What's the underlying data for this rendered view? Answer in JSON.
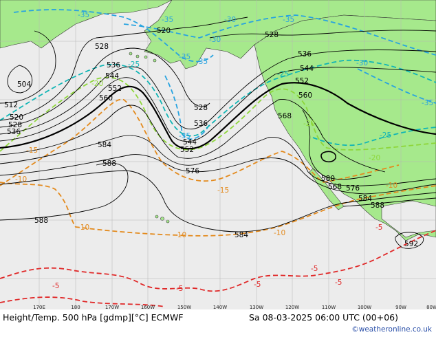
{
  "footer": {
    "title": "Height/Temp. 500 hPa [gdmp][°C] ECMWF",
    "datetime": "Sa 08-03-2025 06:00 UTC (00+06)",
    "credit": "©weatheronline.co.uk"
  },
  "longitude_ticks": [
    "170E",
    "180",
    "170W",
    "160W",
    "150W",
    "140W",
    "130W",
    "120W",
    "110W",
    "100W",
    "90W",
    "80W"
  ],
  "height_labels": [
    "504",
    "512",
    "520",
    "528",
    "536",
    "544",
    "552",
    "560",
    "568",
    "576",
    "580",
    "584",
    "588",
    "592"
  ],
  "temperature_labels": [
    "-35",
    "-30",
    "-25",
    "-20",
    "-15",
    "-10",
    "-5"
  ],
  "colors": {
    "ocean": "#ececec",
    "land": "#a6e98c",
    "height_contour": "#000000",
    "temp_cold": "#27a3e0",
    "temp_cool": "#10b5b5",
    "temp_mild": "#8ed63a",
    "temp_warm": "#e38a1d",
    "temp_hot": "#e02828"
  }
}
